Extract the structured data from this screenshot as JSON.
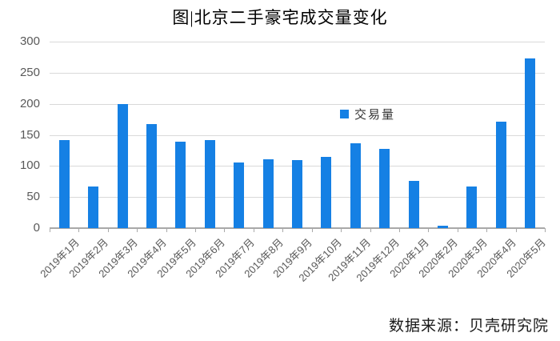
{
  "title": {
    "text": "图|北京二手豪宅成交量变化"
  },
  "legend": {
    "label": "交易量"
  },
  "source": {
    "text": "数据来源：贝壳研究院"
  },
  "chart_data": {
    "type": "bar",
    "title": "图|北京二手豪宅成交量变化",
    "categories": [
      "2019年1月",
      "2019年2月",
      "2019年3月",
      "2019年4月",
      "2019年5月",
      "2019年6月",
      "2019年7月",
      "2019年8月",
      "2019年9月",
      "2019年10月",
      "2019年11月",
      "2019年12月",
      "2020年1月",
      "2020年2月",
      "2020年3月",
      "2020年4月",
      "2020年5月"
    ],
    "series": [
      {
        "name": "交易量",
        "values": [
          142,
          67,
          200,
          168,
          139,
          141,
          106,
          111,
          109,
          114,
          136,
          127,
          76,
          4,
          67,
          171,
          273
        ]
      }
    ],
    "xlabel": "",
    "ylabel": "",
    "ylim": [
      0,
      300
    ],
    "ytick_step": 50,
    "yticks": [
      0,
      50,
      100,
      150,
      200,
      250,
      300
    ],
    "grid": true,
    "legend_position": "inside-center-right",
    "source_note": "数据来源：贝壳研究院",
    "colors": {
      "bar": "#1580e4",
      "grid": "#d9d9d9",
      "axis": "#a9a9a9",
      "tick_label": "#595959",
      "title": "#000000",
      "legend_text": "#333333",
      "source_text": "#1a1a1a"
    }
  }
}
